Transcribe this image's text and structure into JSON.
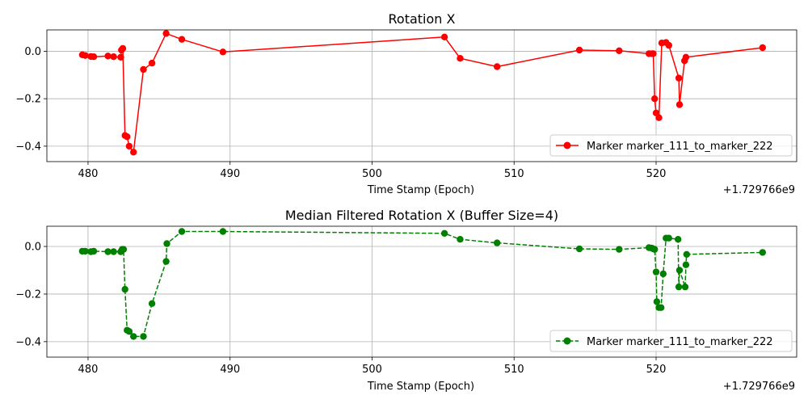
{
  "colors": {
    "red": "#ff0000",
    "green": "#008000",
    "grid": "#b0b0b0"
  },
  "chart_data": [
    {
      "type": "line",
      "title": "Rotation X",
      "xlabel": "Time Stamp (Epoch)",
      "x_offset_label": "+1.729766e9",
      "xlim": [
        477.1,
        529.9
      ],
      "ylim": [
        -0.465,
        0.09
      ],
      "xticks": [
        480,
        490,
        500,
        510,
        520
      ],
      "yticks": [
        0.0,
        -0.2,
        -0.4
      ],
      "xtick_labels": [
        "480",
        "490",
        "500",
        "510",
        "520"
      ],
      "ytick_labels": [
        "0.0",
        "−0.2",
        "−0.4"
      ],
      "grid": true,
      "legend_position": "bottom-right",
      "series": [
        {
          "name": "Marker marker_111_to_marker_222",
          "color": "#ff0000",
          "line_style": "solid",
          "marker": "circle",
          "x": [
            479.6,
            479.8,
            480.2,
            480.4,
            481.4,
            481.8,
            482.3,
            482.35,
            482.45,
            482.6,
            482.75,
            482.9,
            483.2,
            483.9,
            484.5,
            485.5,
            486.6,
            489.5,
            505.1,
            506.2,
            508.8,
            514.6,
            517.4,
            519.5,
            519.7,
            519.8,
            519.9,
            520.0,
            520.2,
            520.4,
            520.7,
            520.9,
            521.6,
            521.65,
            522.0,
            522.1,
            527.5
          ],
          "y": [
            -0.015,
            -0.018,
            -0.022,
            -0.023,
            -0.02,
            -0.023,
            -0.025,
            0.005,
            0.012,
            -0.355,
            -0.36,
            -0.4,
            -0.425,
            -0.077,
            -0.05,
            0.075,
            0.05,
            -0.003,
            0.06,
            -0.03,
            -0.065,
            0.005,
            0.002,
            -0.01,
            -0.01,
            -0.01,
            -0.2,
            -0.26,
            -0.28,
            0.035,
            0.037,
            0.025,
            -0.113,
            -0.225,
            -0.04,
            -0.025,
            0.015
          ]
        }
      ]
    },
    {
      "type": "line",
      "title": "Median Filtered Rotation X (Buffer Size=4)",
      "xlabel": "Time Stamp (Epoch)",
      "x_offset_label": "+1.729766e9",
      "xlim": [
        477.1,
        529.9
      ],
      "ylim": [
        -0.465,
        0.085
      ],
      "xticks": [
        480,
        490,
        500,
        510,
        520
      ],
      "yticks": [
        0.0,
        -0.2,
        -0.4
      ],
      "xtick_labels": [
        "480",
        "490",
        "500",
        "510",
        "520"
      ],
      "ytick_labels": [
        "0.0",
        "−0.2",
        "−0.4"
      ],
      "grid": true,
      "legend_position": "bottom-right",
      "series": [
        {
          "name": "Marker marker_111_to_marker_222",
          "color": "#008000",
          "line_style": "dashed",
          "marker": "circle",
          "x": [
            479.6,
            479.8,
            480.2,
            480.4,
            481.4,
            481.8,
            482.3,
            482.4,
            482.5,
            482.6,
            482.75,
            482.9,
            483.2,
            483.9,
            484.5,
            485.5,
            485.55,
            486.6,
            489.5,
            505.1,
            506.2,
            508.8,
            514.6,
            517.4,
            519.5,
            519.7,
            519.8,
            519.9,
            520.0,
            520.05,
            520.2,
            520.35,
            520.5,
            520.7,
            520.9,
            521.55,
            521.6,
            521.65,
            522.05,
            522.1,
            522.15,
            527.5
          ],
          "y": [
            -0.02,
            -0.02,
            -0.022,
            -0.02,
            -0.022,
            -0.022,
            -0.022,
            -0.012,
            -0.012,
            -0.18,
            -0.352,
            -0.357,
            -0.378,
            -0.378,
            -0.24,
            -0.063,
            0.012,
            0.063,
            0.063,
            0.055,
            0.03,
            0.015,
            -0.01,
            -0.012,
            -0.005,
            -0.007,
            -0.01,
            -0.012,
            -0.107,
            -0.232,
            -0.257,
            -0.257,
            -0.115,
            0.035,
            0.035,
            0.03,
            -0.17,
            -0.1,
            -0.17,
            -0.077,
            -0.033,
            -0.025
          ]
        }
      ]
    }
  ]
}
